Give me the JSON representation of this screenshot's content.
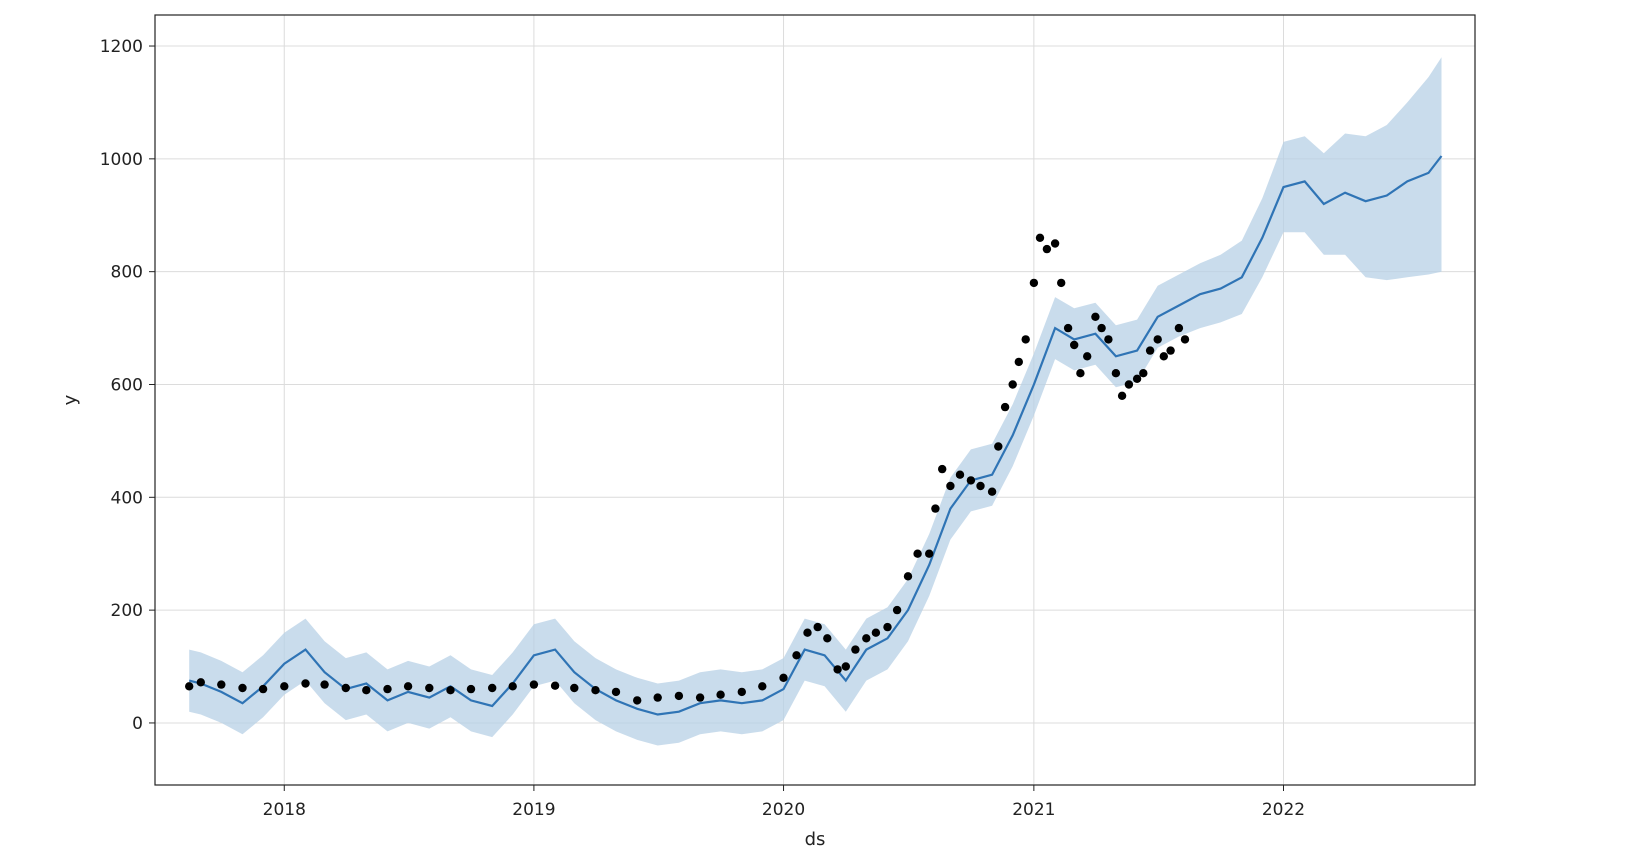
{
  "chart_data": {
    "type": "line",
    "title": "",
    "xlabel": "ds",
    "ylabel": "y",
    "x_axis_type": "date",
    "xlim": [
      "2017-06-26",
      "2022-10-08"
    ],
    "ylim": [
      -110,
      1255
    ],
    "x_ticks": [
      "2018",
      "2019",
      "2020",
      "2021",
      "2022"
    ],
    "x_tick_dates": [
      "2018-01-01",
      "2019-01-01",
      "2020-01-01",
      "2021-01-01",
      "2022-01-01"
    ],
    "y_ticks": [
      0,
      200,
      400,
      600,
      800,
      1000,
      1200
    ],
    "grid": true,
    "legend": "none",
    "colors": {
      "forecast_line": "#2f74b5",
      "uncertainty_band": "#b7d0e6",
      "observed_points": "#000000"
    },
    "series": [
      {
        "kind": "forecast_line",
        "x": [
          "2017-08-15",
          "2017-09-01",
          "2017-10-01",
          "2017-11-01",
          "2017-12-01",
          "2018-01-01",
          "2018-02-01",
          "2018-03-01",
          "2018-04-01",
          "2018-05-01",
          "2018-06-01",
          "2018-07-01",
          "2018-08-01",
          "2018-09-01",
          "2018-10-01",
          "2018-11-01",
          "2018-12-01",
          "2019-01-01",
          "2019-02-01",
          "2019-03-01",
          "2019-04-01",
          "2019-05-01",
          "2019-06-01",
          "2019-07-01",
          "2019-08-01",
          "2019-09-01",
          "2019-10-01",
          "2019-11-01",
          "2019-12-01",
          "2020-01-01",
          "2020-02-01",
          "2020-03-01",
          "2020-04-01",
          "2020-05-01",
          "2020-06-01",
          "2020-07-01",
          "2020-08-01",
          "2020-09-01",
          "2020-10-01",
          "2020-11-01",
          "2020-12-01",
          "2021-01-01",
          "2021-02-01",
          "2021-03-01",
          "2021-04-01",
          "2021-05-01",
          "2021-06-01",
          "2021-07-01",
          "2021-08-01",
          "2021-09-01",
          "2021-10-01",
          "2021-11-01",
          "2021-12-01",
          "2022-01-01",
          "2022-02-01",
          "2022-03-01",
          "2022-04-01",
          "2022-05-01",
          "2022-06-01",
          "2022-07-01",
          "2022-08-01",
          "2022-08-20"
        ],
        "y": [
          75,
          70,
          55,
          35,
          65,
          105,
          130,
          90,
          60,
          70,
          40,
          55,
          45,
          65,
          40,
          30,
          70,
          120,
          130,
          90,
          60,
          40,
          25,
          15,
          20,
          35,
          40,
          35,
          40,
          60,
          130,
          120,
          75,
          130,
          150,
          200,
          280,
          380,
          430,
          440,
          510,
          600,
          700,
          680,
          690,
          650,
          660,
          720,
          740,
          760,
          770,
          790,
          860,
          950,
          960,
          920,
          940,
          925,
          935,
          960,
          975,
          1005
        ]
      },
      {
        "kind": "uncertainty_band",
        "x": [
          "2017-08-15",
          "2017-09-01",
          "2017-10-01",
          "2017-11-01",
          "2017-12-01",
          "2018-01-01",
          "2018-02-01",
          "2018-03-01",
          "2018-04-01",
          "2018-05-01",
          "2018-06-01",
          "2018-07-01",
          "2018-08-01",
          "2018-09-01",
          "2018-10-01",
          "2018-11-01",
          "2018-12-01",
          "2019-01-01",
          "2019-02-01",
          "2019-03-01",
          "2019-04-01",
          "2019-05-01",
          "2019-06-01",
          "2019-07-01",
          "2019-08-01",
          "2019-09-01",
          "2019-10-01",
          "2019-11-01",
          "2019-12-01",
          "2020-01-01",
          "2020-02-01",
          "2020-03-01",
          "2020-04-01",
          "2020-05-01",
          "2020-06-01",
          "2020-07-01",
          "2020-08-01",
          "2020-09-01",
          "2020-10-01",
          "2020-11-01",
          "2020-12-01",
          "2021-01-01",
          "2021-02-01",
          "2021-03-01",
          "2021-04-01",
          "2021-05-01",
          "2021-06-01",
          "2021-07-01",
          "2021-08-01",
          "2021-09-01",
          "2021-10-01",
          "2021-11-01",
          "2021-12-01",
          "2022-01-01",
          "2022-02-01",
          "2022-03-01",
          "2022-04-01",
          "2022-05-01",
          "2022-06-01",
          "2022-07-01",
          "2022-08-01",
          "2022-08-20"
        ],
        "upper": [
          130,
          125,
          110,
          90,
          120,
          160,
          185,
          145,
          115,
          125,
          95,
          110,
          100,
          120,
          95,
          85,
          125,
          175,
          185,
          145,
          115,
          95,
          80,
          70,
          75,
          90,
          95,
          90,
          95,
          115,
          185,
          175,
          130,
          185,
          205,
          255,
          335,
          435,
          485,
          495,
          565,
          655,
          755,
          735,
          745,
          705,
          715,
          775,
          795,
          815,
          830,
          855,
          930,
          1030,
          1040,
          1010,
          1045,
          1040,
          1060,
          1100,
          1145,
          1180
        ],
        "lower": [
          20,
          15,
          0,
          -20,
          10,
          50,
          75,
          35,
          5,
          15,
          -15,
          0,
          -10,
          10,
          -15,
          -25,
          15,
          65,
          75,
          35,
          5,
          -15,
          -30,
          -40,
          -35,
          -20,
          -15,
          -20,
          -15,
          5,
          75,
          65,
          20,
          75,
          95,
          145,
          225,
          325,
          375,
          385,
          455,
          545,
          645,
          625,
          635,
          595,
          605,
          665,
          685,
          700,
          710,
          725,
          790,
          870,
          870,
          830,
          830,
          790,
          785,
          790,
          795,
          800
        ]
      },
      {
        "kind": "observed_points",
        "x": [
          "2017-08-15",
          "2017-09-01",
          "2017-10-01",
          "2017-11-01",
          "2017-12-01",
          "2018-01-01",
          "2018-02-01",
          "2018-03-01",
          "2018-04-01",
          "2018-05-01",
          "2018-06-01",
          "2018-07-01",
          "2018-08-01",
          "2018-09-01",
          "2018-10-01",
          "2018-11-01",
          "2018-12-01",
          "2019-01-01",
          "2019-02-01",
          "2019-03-01",
          "2019-04-01",
          "2019-05-01",
          "2019-06-01",
          "2019-07-01",
          "2019-08-01",
          "2019-09-01",
          "2019-10-01",
          "2019-11-01",
          "2019-12-01",
          "2020-01-01",
          "2020-01-20",
          "2020-02-05",
          "2020-02-20",
          "2020-03-05",
          "2020-03-20",
          "2020-04-01",
          "2020-04-15",
          "2020-05-01",
          "2020-05-15",
          "2020-06-01",
          "2020-06-15",
          "2020-07-01",
          "2020-07-15",
          "2020-08-01",
          "2020-08-10",
          "2020-08-20",
          "2020-09-01",
          "2020-09-15",
          "2020-10-01",
          "2020-10-15",
          "2020-11-01",
          "2020-11-10",
          "2020-11-20",
          "2020-12-01",
          "2020-12-10",
          "2020-12-20",
          "2021-01-01",
          "2021-01-10",
          "2021-01-20",
          "2021-02-01",
          "2021-02-10",
          "2021-02-20",
          "2021-03-01",
          "2021-03-10",
          "2021-03-20",
          "2021-04-01",
          "2021-04-10",
          "2021-04-20",
          "2021-05-01",
          "2021-05-10",
          "2021-05-20",
          "2021-06-01",
          "2021-06-10",
          "2021-06-20",
          "2021-07-01",
          "2021-07-10",
          "2021-07-20",
          "2021-08-01",
          "2021-08-10"
        ],
        "y": [
          65,
          72,
          68,
          62,
          60,
          65,
          70,
          68,
          62,
          58,
          60,
          65,
          62,
          58,
          60,
          62,
          65,
          68,
          66,
          62,
          58,
          55,
          40,
          45,
          48,
          45,
          50,
          55,
          65,
          80,
          120,
          160,
          170,
          150,
          95,
          100,
          130,
          150,
          160,
          170,
          200,
          260,
          300,
          300,
          380,
          450,
          420,
          440,
          430,
          420,
          410,
          490,
          560,
          600,
          640,
          680,
          780,
          860,
          840,
          850,
          780,
          700,
          670,
          620,
          650,
          720,
          700,
          680,
          620,
          580,
          600,
          610,
          620,
          660,
          680,
          650,
          660,
          700,
          680
        ]
      }
    ]
  }
}
